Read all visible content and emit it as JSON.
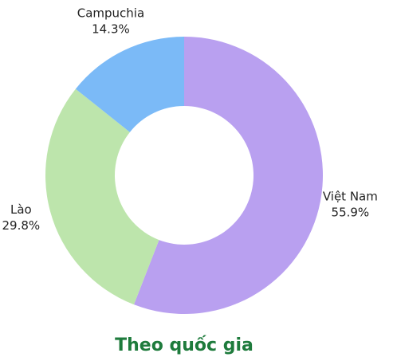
{
  "chart_data": {
    "type": "donut",
    "title": "Theo quốc gia",
    "categories": [
      "Việt Nam",
      "Lào",
      "Campuchia"
    ],
    "values": [
      55.9,
      29.8,
      14.3
    ],
    "value_labels": [
      "55.9%",
      "29.8%",
      "14.3%"
    ],
    "colors": [
      "#b9a0f0",
      "#bde5ac",
      "#7bbaf7"
    ]
  }
}
